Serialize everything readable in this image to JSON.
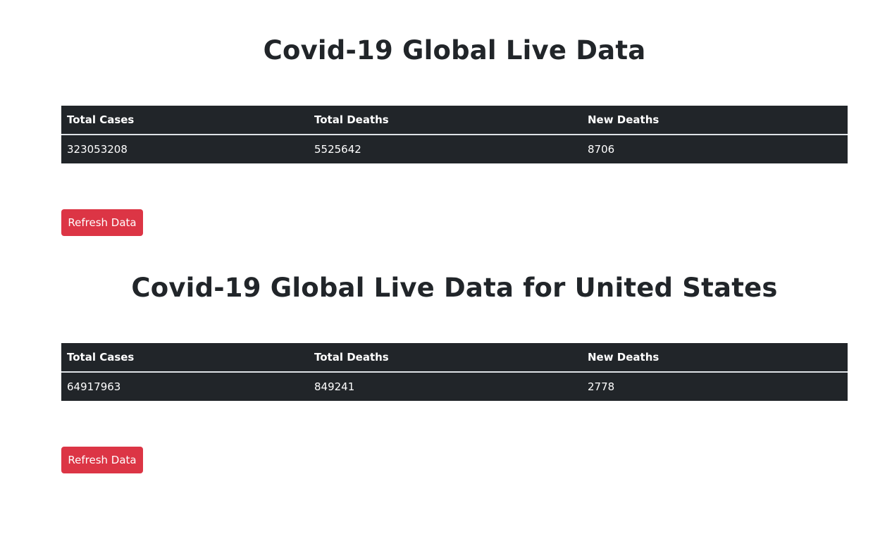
{
  "global": {
    "title": "Covid-19 Global Live Data",
    "headers": [
      "Total Cases",
      "Total Deaths",
      "New Deaths"
    ],
    "row": [
      "323053208",
      "5525642",
      "8706"
    ],
    "refresh_label": "Refresh Data"
  },
  "us": {
    "title": "Covid-19 Global Live Data for United States",
    "headers": [
      "Total Cases",
      "Total Deaths",
      "New Deaths"
    ],
    "row": [
      "64917963",
      "849241",
      "2778"
    ],
    "refresh_label": "Refresh Data"
  },
  "colors": {
    "table_bg": "#212529",
    "button_bg": "#dc3545",
    "text": "#212529"
  }
}
